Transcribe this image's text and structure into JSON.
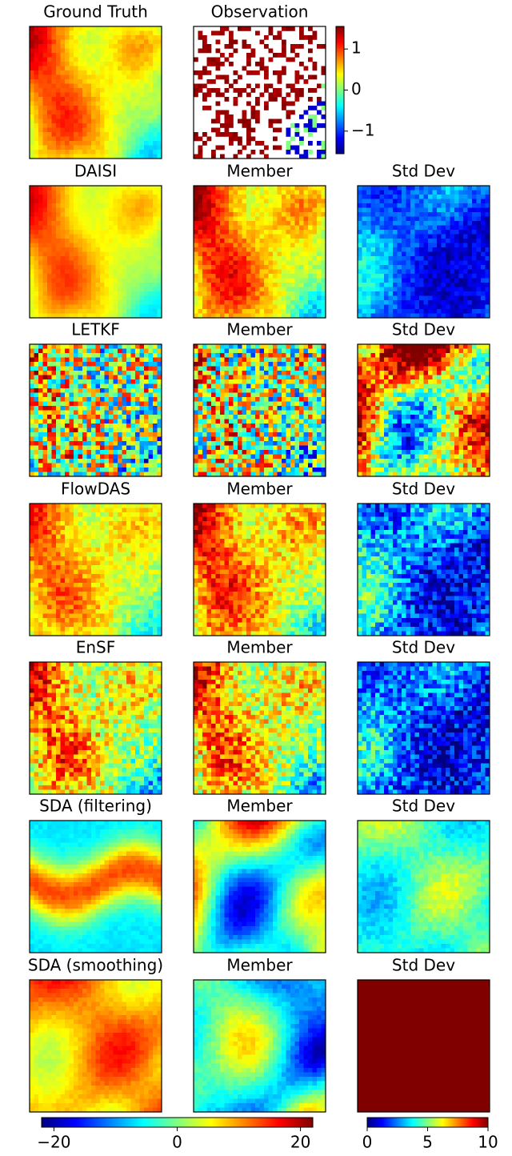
{
  "panels": [
    {
      "title": "Ground Truth"
    },
    {
      "title": "Observation"
    },
    {
      "title": "DAISI"
    },
    {
      "title": "Member"
    },
    {
      "title": "Std Dev"
    },
    {
      "title": "LETKF"
    },
    {
      "title": "Member"
    },
    {
      "title": "Std Dev"
    },
    {
      "title": "FlowDAS"
    },
    {
      "title": "Member"
    },
    {
      "title": "Std Dev"
    },
    {
      "title": "EnSF"
    },
    {
      "title": "Member"
    },
    {
      "title": "Std Dev"
    },
    {
      "title": "SDA (filtering)"
    },
    {
      "title": "Member"
    },
    {
      "title": "Std Dev"
    },
    {
      "title": "SDA (smoothing)"
    },
    {
      "title": "Member"
    },
    {
      "title": "Std Dev"
    }
  ],
  "colorbars": [
    {
      "lim": [
        -1.55,
        1.55
      ],
      "ticks": [
        {
          "value": -1,
          "label": "−1"
        },
        0,
        1
      ]
    },
    {
      "lim": [
        -22,
        22
      ],
      "ticks": [
        {
          "value": -20,
          "label": "−20"
        },
        0,
        20
      ]
    },
    {
      "lim": [
        0,
        10
      ],
      "ticks": [
        0,
        5,
        10
      ]
    }
  ]
}
